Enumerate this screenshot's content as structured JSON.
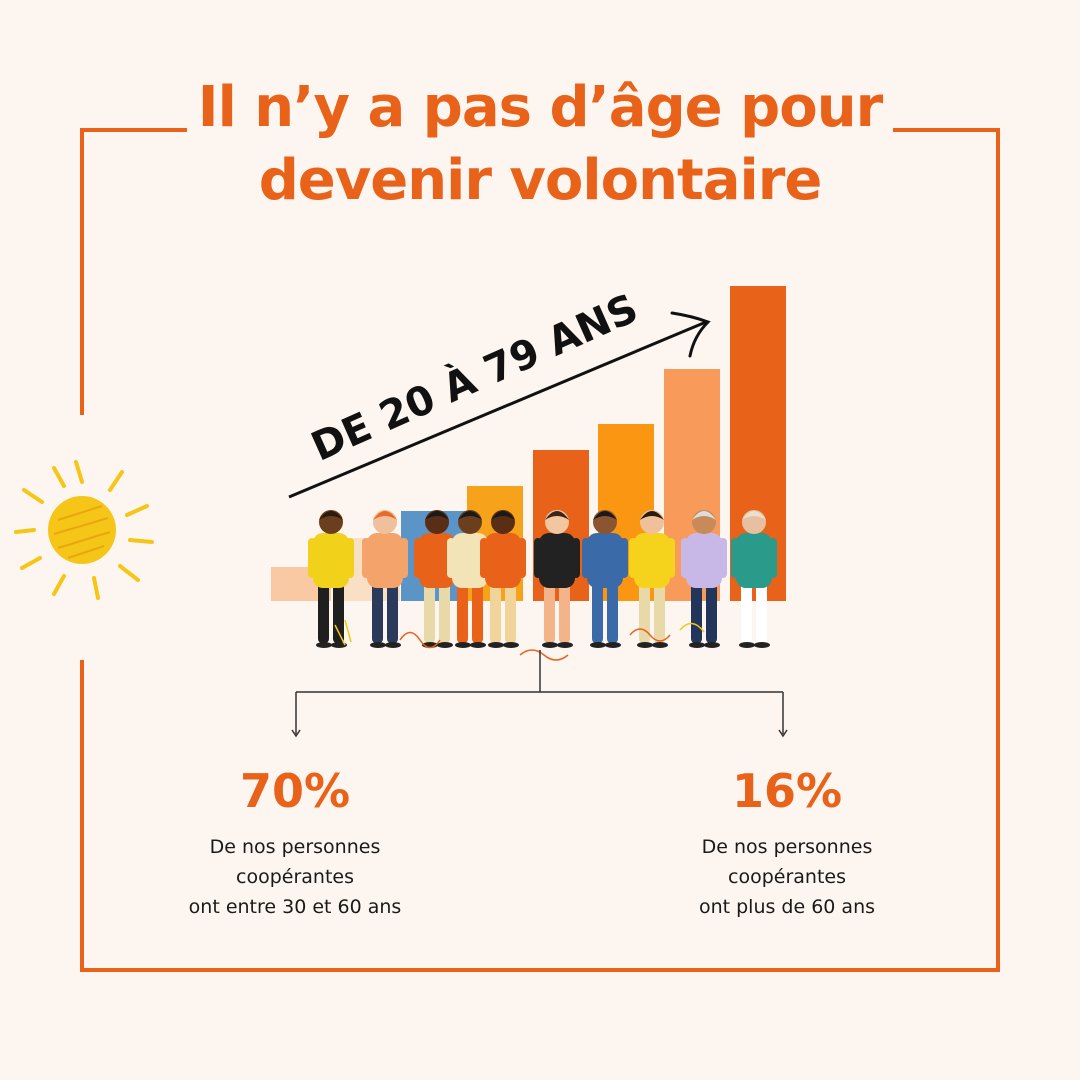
{
  "title": {
    "line1": "Il n’y a pas d’âge pour",
    "line2": "devenir volontaire"
  },
  "age_range": "DE 20 À 79 ANS",
  "stats": [
    {
      "percent": "70%",
      "lines": [
        "De nos personnes",
        "coopérantes",
        "ont entre 30 et 60 ans"
      ]
    },
    {
      "percent": "16%",
      "lines": [
        "De nos personnes",
        "coopérantes",
        "ont plus de 60 ans"
      ]
    }
  ],
  "bar_colors": [
    "#f9c9a3",
    "#f9dfc3",
    "#5b95c8",
    "#f7a21b",
    "#e8621a",
    "#fb9612",
    "#f79a5a",
    "#e8621a"
  ],
  "colors": {
    "accent": "#e8621a",
    "background": "#fdf5ef",
    "sun": "#f5c518"
  },
  "icons": [
    "sun-icon",
    "arrow-icon",
    "people-illustration"
  ]
}
